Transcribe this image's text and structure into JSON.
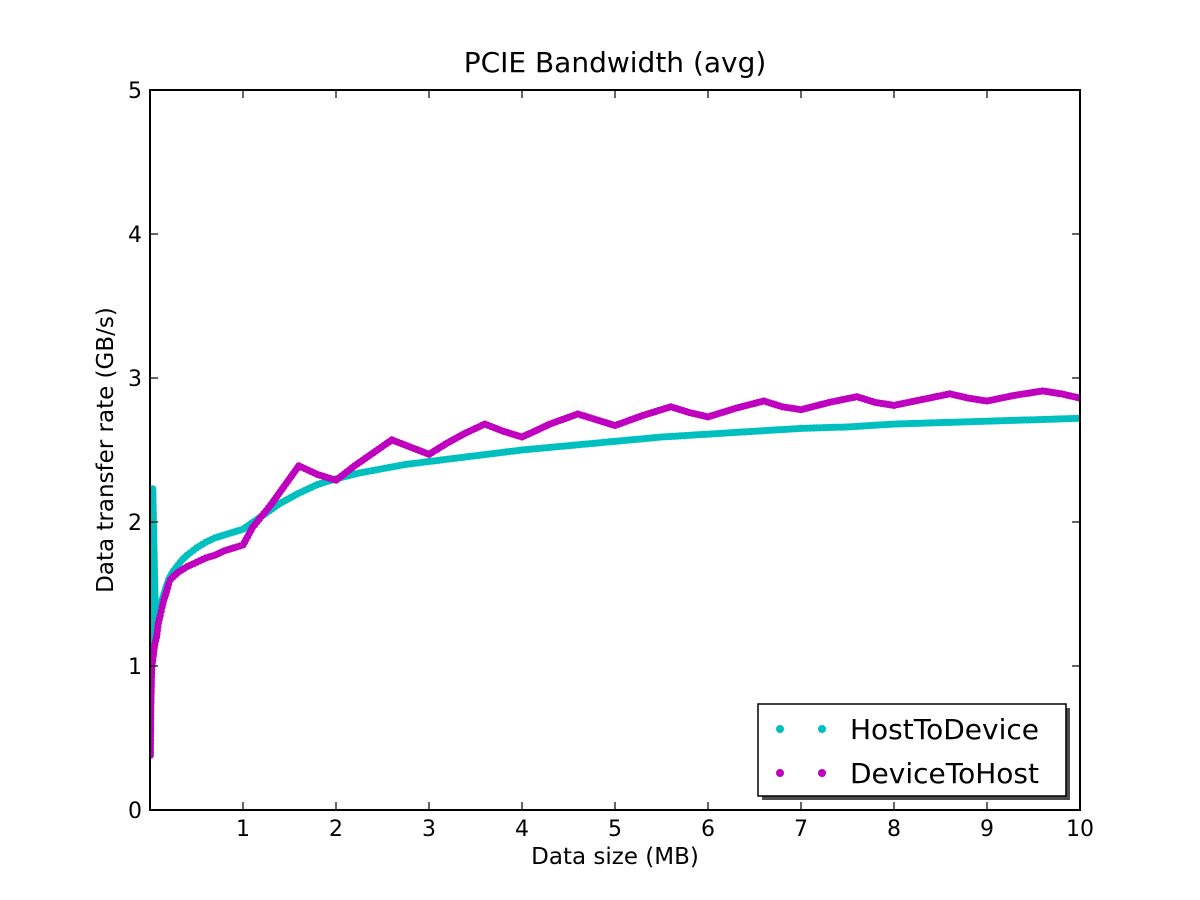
{
  "chart_data": {
    "type": "scatter",
    "title": "PCIE Bandwidth (avg)",
    "xlabel": "Data size (MB)",
    "ylabel": "Data transfer rate (GB/s)",
    "xlim": [
      0,
      10
    ],
    "ylim": [
      0,
      5
    ],
    "xticks": [
      1,
      2,
      3,
      4,
      5,
      6,
      7,
      8,
      9,
      10
    ],
    "yticks": [
      0,
      1,
      2,
      3,
      4,
      5
    ],
    "grid": false,
    "legend_position": "lower-right",
    "series": [
      {
        "name": "HostToDevice",
        "color": "#00bfbf",
        "points": [
          [
            0.004,
            0.72
          ],
          [
            0.01,
            1.42
          ],
          [
            0.02,
            1.9
          ],
          [
            0.03,
            2.23
          ],
          [
            0.06,
            1.28
          ],
          [
            0.08,
            1.33
          ],
          [
            0.1,
            1.4
          ],
          [
            0.15,
            1.5
          ],
          [
            0.2,
            1.6
          ],
          [
            0.25,
            1.66
          ],
          [
            0.3,
            1.7
          ],
          [
            0.35,
            1.74
          ],
          [
            0.4,
            1.77
          ],
          [
            0.5,
            1.82
          ],
          [
            0.6,
            1.86
          ],
          [
            0.7,
            1.89
          ],
          [
            0.8,
            1.91
          ],
          [
            0.9,
            1.93
          ],
          [
            1.0,
            1.95
          ],
          [
            1.2,
            2.04
          ],
          [
            1.4,
            2.13
          ],
          [
            1.6,
            2.2
          ],
          [
            1.8,
            2.26
          ],
          [
            2.0,
            2.3
          ],
          [
            2.25,
            2.34
          ],
          [
            2.5,
            2.37
          ],
          [
            2.75,
            2.4
          ],
          [
            3.0,
            2.42
          ],
          [
            3.5,
            2.46
          ],
          [
            4.0,
            2.5
          ],
          [
            4.5,
            2.53
          ],
          [
            5.0,
            2.56
          ],
          [
            5.5,
            2.59
          ],
          [
            6.0,
            2.61
          ],
          [
            6.5,
            2.63
          ],
          [
            7.0,
            2.65
          ],
          [
            7.5,
            2.66
          ],
          [
            8.0,
            2.68
          ],
          [
            8.5,
            2.69
          ],
          [
            9.0,
            2.7
          ],
          [
            9.5,
            2.71
          ],
          [
            10.0,
            2.72
          ]
        ]
      },
      {
        "name": "DeviceToHost",
        "color": "#bf00bf",
        "points": [
          [
            0.004,
            0.38
          ],
          [
            0.008,
            0.7
          ],
          [
            0.015,
            0.9
          ],
          [
            0.02,
            1.0
          ],
          [
            0.05,
            1.15
          ],
          [
            0.07,
            1.2
          ],
          [
            0.09,
            1.3
          ],
          [
            0.11,
            1.35
          ],
          [
            0.13,
            1.41
          ],
          [
            0.15,
            1.46
          ],
          [
            0.18,
            1.52
          ],
          [
            0.2,
            1.57
          ],
          [
            0.22,
            1.6
          ],
          [
            0.25,
            1.62
          ],
          [
            0.3,
            1.65
          ],
          [
            0.4,
            1.69
          ],
          [
            0.5,
            1.72
          ],
          [
            0.6,
            1.75
          ],
          [
            0.7,
            1.77
          ],
          [
            0.8,
            1.8
          ],
          [
            0.9,
            1.82
          ],
          [
            1.0,
            1.84
          ],
          [
            1.1,
            1.96
          ],
          [
            1.2,
            2.04
          ],
          [
            1.3,
            2.12
          ],
          [
            1.4,
            2.21
          ],
          [
            1.5,
            2.3
          ],
          [
            1.6,
            2.39
          ],
          [
            1.7,
            2.36
          ],
          [
            1.8,
            2.33
          ],
          [
            2.0,
            2.29
          ],
          [
            2.2,
            2.39
          ],
          [
            2.4,
            2.48
          ],
          [
            2.6,
            2.57
          ],
          [
            2.8,
            2.52
          ],
          [
            3.0,
            2.47
          ],
          [
            3.2,
            2.55
          ],
          [
            3.4,
            2.62
          ],
          [
            3.6,
            2.68
          ],
          [
            3.8,
            2.63
          ],
          [
            4.0,
            2.59
          ],
          [
            4.3,
            2.68
          ],
          [
            4.6,
            2.75
          ],
          [
            4.8,
            2.71
          ],
          [
            5.0,
            2.67
          ],
          [
            5.3,
            2.74
          ],
          [
            5.6,
            2.8
          ],
          [
            5.8,
            2.76
          ],
          [
            6.0,
            2.73
          ],
          [
            6.3,
            2.79
          ],
          [
            6.6,
            2.84
          ],
          [
            6.8,
            2.8
          ],
          [
            7.0,
            2.78
          ],
          [
            7.3,
            2.83
          ],
          [
            7.6,
            2.87
          ],
          [
            7.8,
            2.83
          ],
          [
            8.0,
            2.81
          ],
          [
            8.3,
            2.85
          ],
          [
            8.6,
            2.89
          ],
          [
            8.8,
            2.86
          ],
          [
            9.0,
            2.84
          ],
          [
            9.3,
            2.88
          ],
          [
            9.6,
            2.91
          ],
          [
            9.8,
            2.89
          ],
          [
            10.0,
            2.86
          ]
        ]
      }
    ]
  }
}
